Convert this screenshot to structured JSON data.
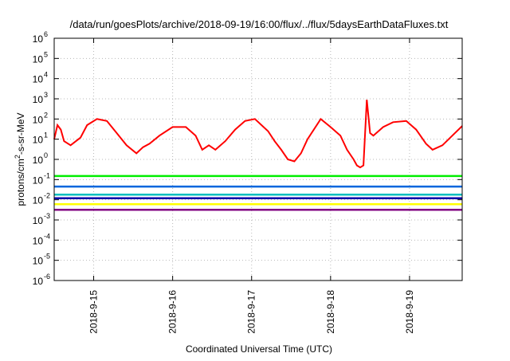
{
  "chart_data": {
    "type": "line",
    "title": "/data/run/goesPlots/archive/2018-09-19/16:00/flux/../flux/5daysEarthDataFluxes.txt",
    "xlabel": "Coordinated Universal Time (UTC)",
    "ylabel": {
      "prefix": "protons/cm",
      "sup": "2",
      "suffix": "-s-sr-MeV"
    },
    "yscale": "log",
    "ylim": [
      1e-06,
      1000000.0
    ],
    "y_ticks": [
      {
        "value": 1e-06,
        "base": "10",
        "exp": "-6"
      },
      {
        "value": 1e-05,
        "base": "10",
        "exp": "-5"
      },
      {
        "value": 0.0001,
        "base": "10",
        "exp": "-4"
      },
      {
        "value": 0.001,
        "base": "10",
        "exp": "-3"
      },
      {
        "value": 0.01,
        "base": "10",
        "exp": "-2"
      },
      {
        "value": 0.1,
        "base": "10",
        "exp": "-1"
      },
      {
        "value": 1,
        "base": "10",
        "exp": "0"
      },
      {
        "value": 10,
        "base": "10",
        "exp": "1"
      },
      {
        "value": 100,
        "base": "10",
        "exp": "2"
      },
      {
        "value": 1000,
        "base": "10",
        "exp": "3"
      },
      {
        "value": 10000,
        "base": "10",
        "exp": "4"
      },
      {
        "value": 100000,
        "base": "10",
        "exp": "5"
      },
      {
        "value": 1000000,
        "base": "10",
        "exp": "6"
      }
    ],
    "xlim": [
      "2018-09-14 12:00",
      "2018-09-19 16:00"
    ],
    "x_ticks": [
      {
        "value": "2018-09-15 00:00",
        "label": "2018-9-15"
      },
      {
        "value": "2018-09-16 00:00",
        "label": "2018-9-16"
      },
      {
        "value": "2018-09-17 00:00",
        "label": "2018-9-17"
      },
      {
        "value": "2018-09-18 00:00",
        "label": "2018-9-18"
      },
      {
        "value": "2018-09-19 00:00",
        "label": "2018-9-19"
      }
    ],
    "grid": true,
    "series": [
      {
        "color": "#ff0000",
        "x": [
          "2018-09-14 12:00",
          "2018-09-14 13:00",
          "2018-09-14 14:00",
          "2018-09-14 15:00",
          "2018-09-14 17:00",
          "2018-09-14 20:00",
          "2018-09-14 22:00",
          "2018-09-15 01:00",
          "2018-09-15 04:00",
          "2018-09-15 07:00",
          "2018-09-15 10:00",
          "2018-09-15 13:00",
          "2018-09-15 15:00",
          "2018-09-15 17:00",
          "2018-09-15 20:00",
          "2018-09-16 00:00",
          "2018-09-16 04:00",
          "2018-09-16 07:00",
          "2018-09-16 09:00",
          "2018-09-16 11:00",
          "2018-09-16 13:00",
          "2018-09-16 16:00",
          "2018-09-16 19:00",
          "2018-09-16 22:00",
          "2018-09-17 01:00",
          "2018-09-17 05:00",
          "2018-09-17 07:00",
          "2018-09-17 09:00",
          "2018-09-17 11:00",
          "2018-09-17 13:00",
          "2018-09-17 15:00",
          "2018-09-17 17:00",
          "2018-09-17 21:00",
          "2018-09-18 00:00",
          "2018-09-18 03:00",
          "2018-09-18 05:00",
          "2018-09-18 07:00",
          "2018-09-18 08:00",
          "2018-09-18 09:00",
          "2018-09-18 10:00",
          "2018-09-18 11:00",
          "2018-09-18 12:00",
          "2018-09-18 13:00",
          "2018-09-18 16:00",
          "2018-09-18 19:00",
          "2018-09-18 23:00",
          "2018-09-19 02:00",
          "2018-09-19 05:00",
          "2018-09-19 07:00",
          "2018-09-19 10:00",
          "2018-09-19 13:00",
          "2018-09-19 16:00"
        ],
        "y": [
          10,
          50,
          30,
          8,
          5,
          12,
          50,
          100,
          80,
          20,
          5,
          2,
          4,
          6,
          15,
          40,
          40,
          15,
          3,
          5,
          3,
          8,
          30,
          80,
          100,
          25,
          8,
          3,
          1,
          0.8,
          2,
          10,
          100,
          40,
          15,
          3,
          1,
          0.5,
          0.4,
          0.5,
          900,
          20,
          15,
          40,
          70,
          80,
          30,
          6,
          3,
          5,
          15,
          45
        ]
      },
      {
        "color": "#00ee00",
        "x": [
          "2018-09-14 12:00",
          "2018-09-19 16:00"
        ],
        "y": [
          0.15,
          0.15
        ]
      },
      {
        "color": "#0066dd",
        "x": [
          "2018-09-14 12:00",
          "2018-09-19 16:00"
        ],
        "y": [
          0.045,
          0.045
        ]
      },
      {
        "color": "#00bfbf",
        "x": [
          "2018-09-14 12:00",
          "2018-09-19 16:00"
        ],
        "y": [
          0.018,
          0.018
        ]
      },
      {
        "color": "#0000aa",
        "x": [
          "2018-09-14 12:00",
          "2018-09-19 16:00"
        ],
        "y": [
          0.012,
          0.012
        ]
      },
      {
        "color": "#ffff00",
        "x": [
          "2018-09-14 12:00",
          "2018-09-19 16:00"
        ],
        "y": [
          0.006,
          0.006
        ]
      },
      {
        "color": "#800080",
        "x": [
          "2018-09-14 12:00",
          "2018-09-19 16:00"
        ],
        "y": [
          0.0032,
          0.0032
        ]
      }
    ]
  }
}
